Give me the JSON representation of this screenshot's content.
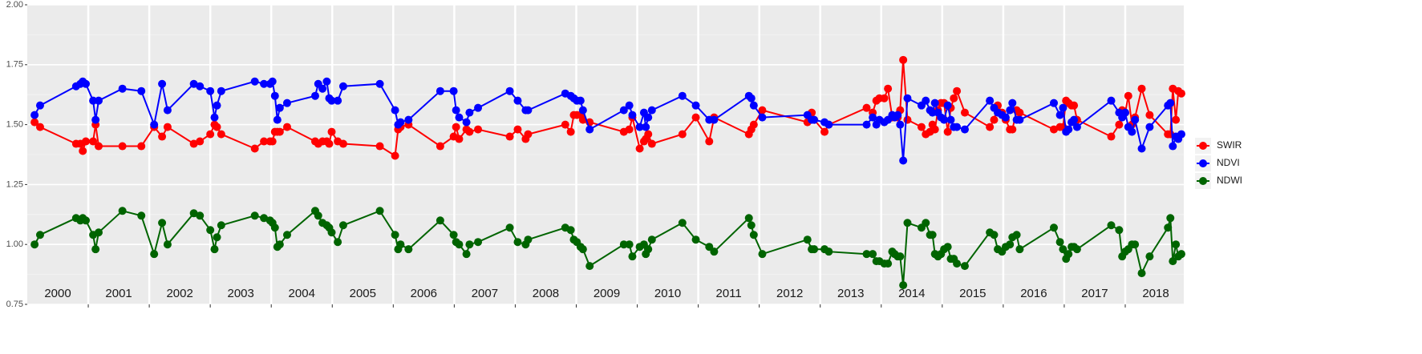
{
  "chart_data": {
    "type": "line",
    "x": [
      2000.12,
      2000.21,
      2000.8,
      2000.87,
      2000.91,
      2000.96,
      2001.08,
      2001.12,
      2001.17,
      2001.56,
      2001.87,
      2002.08,
      2002.21,
      2002.3,
      2002.73,
      2002.83,
      2003.0,
      2003.07,
      2003.11,
      2003.18,
      2003.73,
      2003.88,
      2003.98,
      2004.02,
      2004.06,
      2004.1,
      2004.14,
      2004.26,
      2004.72,
      2004.77,
      2004.84,
      2004.91,
      2004.95,
      2004.99,
      2005.09,
      2005.18,
      2005.78,
      2006.03,
      2006.08,
      2006.12,
      2006.25,
      2006.77,
      2006.99,
      2007.03,
      2007.08,
      2007.2,
      2007.25,
      2007.39,
      2007.91,
      2008.04,
      2008.17,
      2008.21,
      2008.82,
      2008.91,
      2008.96,
      2009.01,
      2009.07,
      2009.11,
      2009.22,
      2009.78,
      2009.87,
      2009.92,
      2010.04,
      2010.11,
      2010.14,
      2010.18,
      2010.24,
      2010.74,
      2010.96,
      2011.18,
      2011.26,
      2011.83,
      2011.87,
      2011.91,
      2012.05,
      2012.79,
      2012.86,
      2012.9,
      2013.07,
      2013.14,
      2013.76,
      2013.86,
      2013.92,
      2013.97,
      2014.05,
      2014.11,
      2014.18,
      2014.22,
      2014.27,
      2014.31,
      2014.36,
      2014.43,
      2014.66,
      2014.73,
      2014.8,
      2014.84,
      2014.88,
      2014.93,
      2014.98,
      2015.03,
      2015.09,
      2015.14,
      2015.19,
      2015.24,
      2015.37,
      2015.78,
      2015.85,
      2015.91,
      2015.98,
      2016.04,
      2016.11,
      2016.15,
      2016.22,
      2016.27,
      2016.83,
      2016.93,
      2016.98,
      2017.03,
      2017.07,
      2017.12,
      2017.16,
      2017.21,
      2017.77,
      2017.9,
      2017.95,
      2018.0,
      2018.05,
      2018.11,
      2018.16,
      2018.27,
      2018.4,
      2018.7,
      2018.74,
      2018.78,
      2018.83,
      2018.87,
      2018.92
    ],
    "series": [
      {
        "name": "SWIR",
        "color": "#ff0000",
        "values": [
          1.51,
          1.49,
          1.42,
          1.42,
          1.39,
          1.43,
          1.43,
          1.5,
          1.41,
          1.41,
          1.41,
          1.49,
          1.45,
          1.49,
          1.42,
          1.43,
          1.46,
          1.5,
          1.49,
          1.46,
          1.4,
          1.43,
          1.43,
          1.43,
          1.47,
          1.47,
          1.47,
          1.49,
          1.43,
          1.42,
          1.43,
          1.43,
          1.42,
          1.47,
          1.43,
          1.42,
          1.41,
          1.37,
          1.48,
          1.49,
          1.5,
          1.41,
          1.45,
          1.49,
          1.44,
          1.48,
          1.47,
          1.48,
          1.45,
          1.48,
          1.44,
          1.46,
          1.5,
          1.47,
          1.54,
          1.54,
          1.54,
          1.52,
          1.51,
          1.47,
          1.48,
          1.53,
          1.4,
          1.43,
          1.44,
          1.46,
          1.42,
          1.46,
          1.53,
          1.43,
          1.53,
          1.46,
          1.48,
          1.5,
          1.56,
          1.51,
          1.55,
          1.52,
          1.47,
          1.5,
          1.57,
          1.55,
          1.6,
          1.61,
          1.61,
          1.65,
          1.53,
          1.53,
          1.53,
          1.56,
          1.77,
          1.52,
          1.49,
          1.46,
          1.47,
          1.5,
          1.48,
          1.56,
          1.59,
          1.59,
          1.47,
          1.57,
          1.61,
          1.64,
          1.55,
          1.49,
          1.52,
          1.58,
          1.55,
          1.52,
          1.48,
          1.48,
          1.56,
          1.55,
          1.48,
          1.49,
          1.49,
          1.6,
          1.59,
          1.58,
          1.58,
          1.52,
          1.45,
          1.5,
          1.56,
          1.55,
          1.62,
          1.5,
          1.53,
          1.65,
          1.54,
          1.46,
          1.46,
          1.65,
          1.52,
          1.64,
          1.63
        ]
      },
      {
        "name": "NDVI",
        "color": "#0000ff",
        "values": [
          1.54,
          1.58,
          1.66,
          1.67,
          1.68,
          1.67,
          1.6,
          1.52,
          1.6,
          1.65,
          1.64,
          1.5,
          1.67,
          1.56,
          1.67,
          1.66,
          1.64,
          1.53,
          1.58,
          1.64,
          1.68,
          1.67,
          1.67,
          1.68,
          1.62,
          1.52,
          1.57,
          1.59,
          1.62,
          1.67,
          1.65,
          1.68,
          1.61,
          1.6,
          1.6,
          1.66,
          1.67,
          1.56,
          1.5,
          1.51,
          1.52,
          1.64,
          1.64,
          1.56,
          1.53,
          1.51,
          1.55,
          1.57,
          1.64,
          1.6,
          1.56,
          1.56,
          1.63,
          1.62,
          1.61,
          1.6,
          1.6,
          1.56,
          1.48,
          1.56,
          1.58,
          1.54,
          1.49,
          1.55,
          1.49,
          1.53,
          1.56,
          1.62,
          1.58,
          1.52,
          1.52,
          1.62,
          1.61,
          1.58,
          1.53,
          1.54,
          1.52,
          1.52,
          1.51,
          1.5,
          1.5,
          1.53,
          1.5,
          1.52,
          1.51,
          1.52,
          1.54,
          1.53,
          1.54,
          1.5,
          1.35,
          1.61,
          1.58,
          1.6,
          1.56,
          1.55,
          1.59,
          1.55,
          1.53,
          1.52,
          1.58,
          1.52,
          1.49,
          1.49,
          1.48,
          1.6,
          1.57,
          1.55,
          1.54,
          1.53,
          1.56,
          1.59,
          1.52,
          1.52,
          1.59,
          1.54,
          1.57,
          1.47,
          1.48,
          1.51,
          1.52,
          1.49,
          1.6,
          1.55,
          1.53,
          1.55,
          1.49,
          1.47,
          1.52,
          1.4,
          1.49,
          1.58,
          1.59,
          1.41,
          1.45,
          1.44,
          1.46
        ]
      },
      {
        "name": "NDWI",
        "color": "#006400",
        "values": [
          1.0,
          1.04,
          1.11,
          1.1,
          1.11,
          1.1,
          1.04,
          0.98,
          1.05,
          1.14,
          1.12,
          0.96,
          1.09,
          1.0,
          1.13,
          1.12,
          1.06,
          0.98,
          1.03,
          1.08,
          1.12,
          1.11,
          1.1,
          1.09,
          1.07,
          0.99,
          1.0,
          1.04,
          1.14,
          1.12,
          1.09,
          1.08,
          1.07,
          1.05,
          1.01,
          1.08,
          1.14,
          1.04,
          0.98,
          1.0,
          0.98,
          1.1,
          1.04,
          1.01,
          1.0,
          0.96,
          1.0,
          1.01,
          1.07,
          1.01,
          1.0,
          1.02,
          1.07,
          1.06,
          1.02,
          1.01,
          0.99,
          0.98,
          0.91,
          1.0,
          1.0,
          0.95,
          0.99,
          1.0,
          0.96,
          0.98,
          1.02,
          1.09,
          1.02,
          0.99,
          0.97,
          1.11,
          1.08,
          1.04,
          0.96,
          1.02,
          0.98,
          0.98,
          0.98,
          0.97,
          0.96,
          0.96,
          0.93,
          0.93,
          0.92,
          0.92,
          0.97,
          0.96,
          0.95,
          0.95,
          0.83,
          1.09,
          1.07,
          1.09,
          1.04,
          1.04,
          0.96,
          0.95,
          0.96,
          0.98,
          0.99,
          0.94,
          0.94,
          0.92,
          0.91,
          1.05,
          1.04,
          0.98,
          0.97,
          0.99,
          1.0,
          1.03,
          1.04,
          0.98,
          1.07,
          1.01,
          0.98,
          0.94,
          0.96,
          0.99,
          0.99,
          0.98,
          1.08,
          1.06,
          0.95,
          0.97,
          0.98,
          1.0,
          1.0,
          0.88,
          0.95,
          1.07,
          1.11,
          0.93,
          1.0,
          0.95,
          0.96
        ]
      }
    ],
    "xlim": [
      2000.0,
      2018.96
    ],
    "xticks": [
      2001,
      2002,
      2003,
      2004,
      2005,
      2006,
      2007,
      2008,
      2009,
      2010,
      2011,
      2012,
      2013,
      2014,
      2015,
      2016,
      2017,
      2018
    ],
    "year_labels": [
      2000,
      2001,
      2002,
      2003,
      2004,
      2005,
      2006,
      2007,
      2008,
      2009,
      2010,
      2011,
      2012,
      2013,
      2014,
      2015,
      2016,
      2017,
      2018
    ],
    "ylim": [
      0.75,
      2.0
    ],
    "yticks": [
      0.75,
      {
        "value": 1.0,
        "label": "1.00"
      },
      1.25,
      {
        "value": 1.5,
        "label": "1.50"
      },
      1.75,
      {
        "value": 2.0,
        "label": "2.00"
      }
    ],
    "grid": true,
    "legend": "right"
  }
}
